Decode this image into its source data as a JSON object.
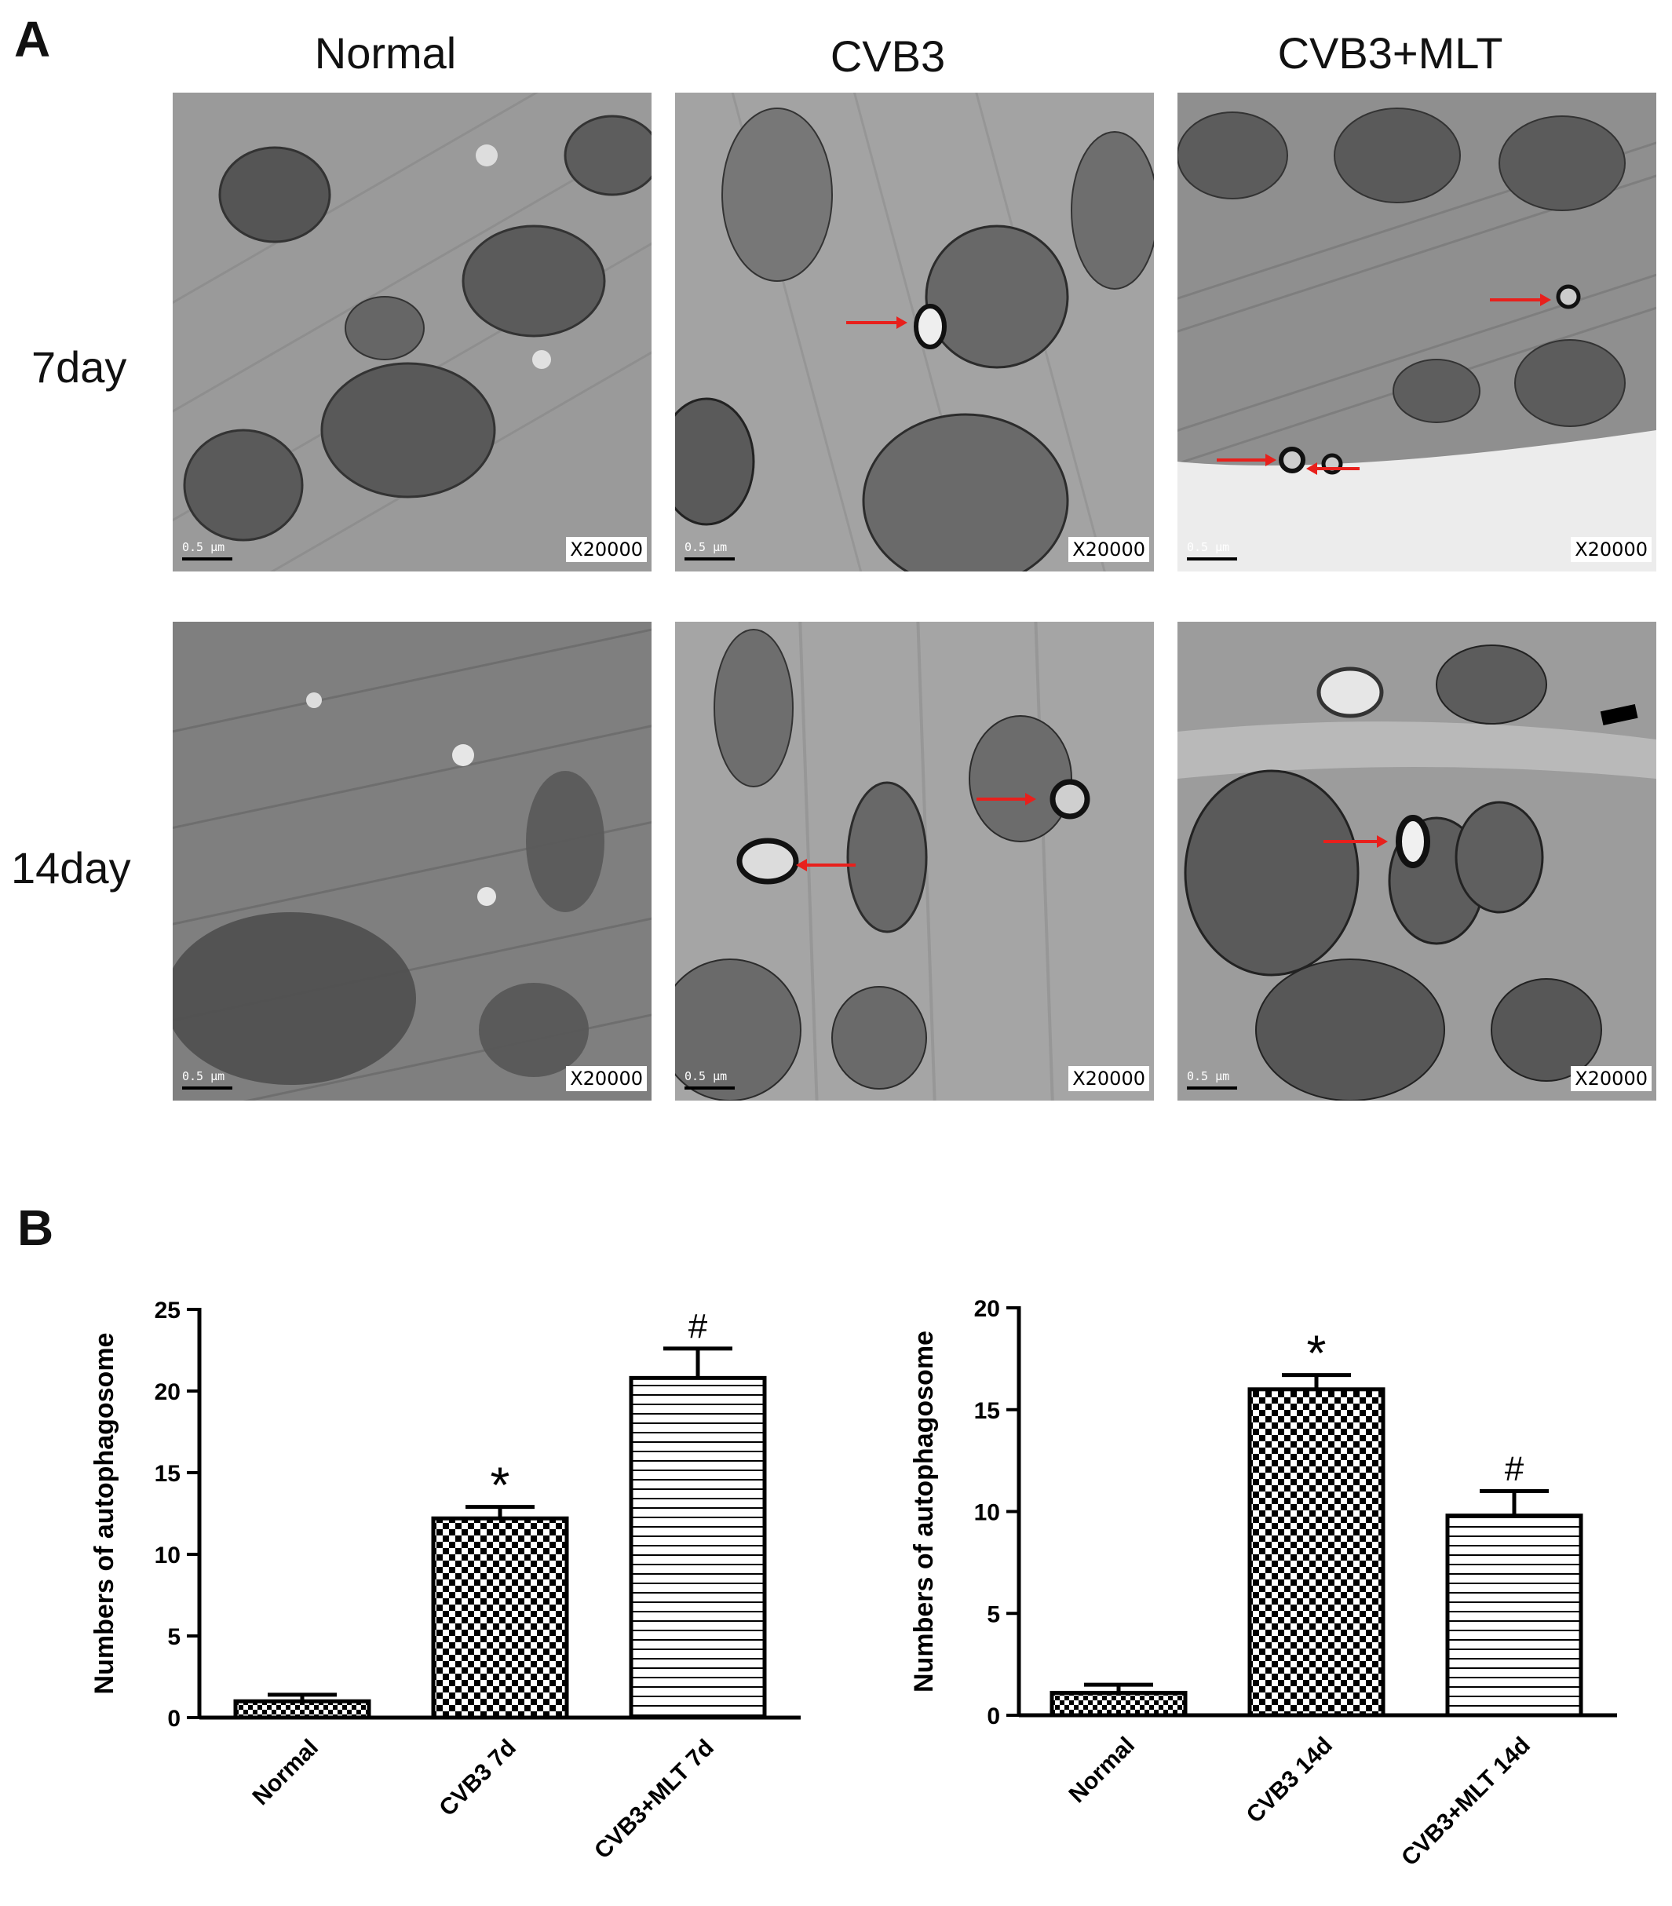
{
  "panel_a": {
    "letter": "A",
    "columns": [
      "Normal",
      "CVB3",
      "CVB3+MLT"
    ],
    "rows": [
      "7day",
      "14day"
    ],
    "magnification": "X20000",
    "scale_bar": "0.5 μm",
    "arrow_color": "#e8201c"
  },
  "panel_b": {
    "letter": "B"
  },
  "chart_data": [
    {
      "type": "bar",
      "categories": [
        "Normal",
        "CVB3 7d",
        "CVB3+MLT 7d"
      ],
      "values": [
        1.0,
        12.2,
        20.8
      ],
      "errors": [
        0.4,
        0.7,
        1.8
      ],
      "patterns": [
        "checker-fine",
        "checker",
        "horizontal-lines"
      ],
      "annotations": [
        "",
        "*",
        "#"
      ],
      "title": "",
      "xlabel": "",
      "ylabel": "Numbers of autophagosome",
      "ylim": [
        0,
        25
      ],
      "yticks": [
        0,
        5,
        10,
        15,
        20,
        25
      ],
      "grid": false
    },
    {
      "type": "bar",
      "categories": [
        "Normal",
        "CVB3 14d",
        "CVB3+MLT 14d"
      ],
      "values": [
        1.1,
        16.0,
        9.8
      ],
      "errors": [
        0.4,
        0.7,
        1.2
      ],
      "patterns": [
        "checker-fine",
        "checker",
        "horizontal-lines"
      ],
      "annotations": [
        "",
        "*",
        "#"
      ],
      "title": "",
      "xlabel": "",
      "ylabel": "Numbers of autophagosome",
      "ylim": [
        0,
        20
      ],
      "yticks": [
        0,
        5,
        10,
        15,
        20
      ],
      "grid": false
    }
  ]
}
